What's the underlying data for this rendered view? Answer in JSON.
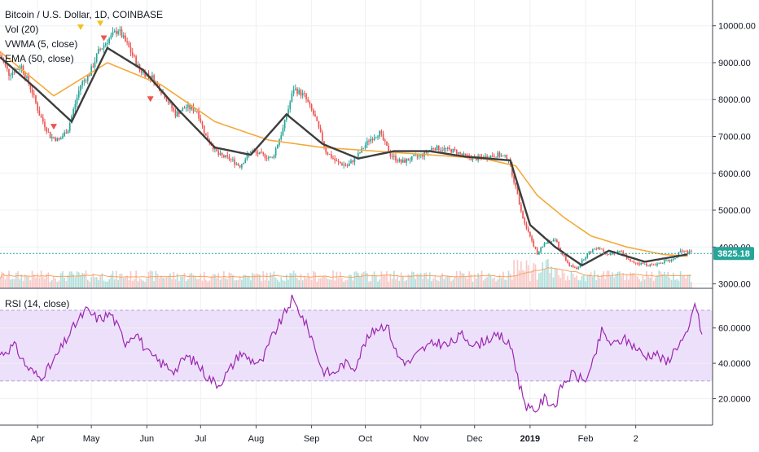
{
  "chart_data": [
    {
      "type": "candlestick",
      "legend": [
        "Bitcoin / U.S. Dollar, 1D, COINBASE",
        "Vol (20)",
        "VWMA (5, close)",
        "EMA (50, close)"
      ],
      "yticks": [
        "10000.00",
        "9000.00",
        "8000.00",
        "7000.00",
        "6000.00",
        "5000.00",
        "4000.00",
        "3000.00"
      ],
      "ylim": [
        2880,
        10700
      ],
      "last_price_label": "3825.18",
      "last_price": 3825.18,
      "colors": {
        "up": "#26a69a",
        "down": "#ef5350",
        "vwma": "#3d3d3d",
        "ema": "#f4a93b",
        "price_line": "#26a69a",
        "vol_ma": "#f4a460"
      },
      "xticks": [
        "Apr",
        "May",
        "Jun",
        "Jul",
        "Aug",
        "Sep",
        "Oct",
        "Nov",
        "Dec",
        "2019",
        "Feb",
        "2"
      ],
      "close_path": [
        [
          0,
          9200
        ],
        [
          5,
          8700
        ],
        [
          12,
          8900
        ],
        [
          18,
          8200
        ],
        [
          22,
          7600
        ],
        [
          28,
          7000
        ],
        [
          33,
          6900
        ],
        [
          38,
          7200
        ],
        [
          45,
          8400
        ],
        [
          50,
          8700
        ],
        [
          55,
          9300
        ],
        [
          60,
          9600
        ],
        [
          66,
          9900
        ],
        [
          72,
          9400
        ],
        [
          78,
          8800
        ],
        [
          85,
          8600
        ],
        [
          92,
          8100
        ],
        [
          98,
          7600
        ],
        [
          104,
          7800
        ],
        [
          110,
          7700
        ],
        [
          115,
          7000
        ],
        [
          122,
          6500
        ],
        [
          128,
          6400
        ],
        [
          134,
          6200
        ],
        [
          140,
          6600
        ],
        [
          146,
          6500
        ],
        [
          152,
          6400
        ],
        [
          158,
          7200
        ],
        [
          164,
          8300
        ],
        [
          170,
          8100
        ],
        [
          176,
          7500
        ],
        [
          182,
          6600
        ],
        [
          188,
          6300
        ],
        [
          194,
          6200
        ],
        [
          200,
          6500
        ],
        [
          206,
          6900
        ],
        [
          212,
          7100
        ],
        [
          218,
          6500
        ],
        [
          224,
          6300
        ],
        [
          230,
          6400
        ],
        [
          236,
          6500
        ],
        [
          242,
          6700
        ],
        [
          248,
          6650
        ],
        [
          254,
          6600
        ],
        [
          260,
          6450
        ],
        [
          266,
          6400
        ],
        [
          272,
          6450
        ],
        [
          278,
          6500
        ],
        [
          284,
          6400
        ],
        [
          288,
          5600
        ],
        [
          292,
          4800
        ],
        [
          296,
          4300
        ],
        [
          300,
          3800
        ],
        [
          304,
          4100
        ],
        [
          310,
          4200
        ],
        [
          314,
          3800
        ],
        [
          318,
          3500
        ],
        [
          322,
          3400
        ],
        [
          326,
          3700
        ],
        [
          330,
          3900
        ],
        [
          334,
          4000
        ],
        [
          340,
          3800
        ],
        [
          346,
          3900
        ],
        [
          352,
          3600
        ],
        [
          358,
          3550
        ],
        [
          364,
          3500
        ],
        [
          370,
          3600
        ],
        [
          376,
          3650
        ],
        [
          380,
          3900
        ],
        [
          384,
          3850
        ]
      ],
      "ema_path": [
        [
          0,
          9300
        ],
        [
          30,
          8100
        ],
        [
          60,
          9000
        ],
        [
          90,
          8400
        ],
        [
          120,
          7400
        ],
        [
          150,
          6900
        ],
        [
          180,
          6700
        ],
        [
          210,
          6600
        ],
        [
          240,
          6500
        ],
        [
          270,
          6400
        ],
        [
          288,
          6200
        ],
        [
          300,
          5400
        ],
        [
          315,
          4800
        ],
        [
          330,
          4300
        ],
        [
          350,
          4000
        ],
        [
          370,
          3800
        ],
        [
          384,
          3750
        ]
      ],
      "vwma_path": [
        [
          0,
          9150
        ],
        [
          20,
          8300
        ],
        [
          40,
          7400
        ],
        [
          60,
          9400
        ],
        [
          80,
          8800
        ],
        [
          100,
          7700
        ],
        [
          120,
          6700
        ],
        [
          140,
          6500
        ],
        [
          160,
          7600
        ],
        [
          180,
          6800
        ],
        [
          200,
          6400
        ],
        [
          220,
          6600
        ],
        [
          240,
          6600
        ],
        [
          260,
          6450
        ],
        [
          285,
          6350
        ],
        [
          296,
          4600
        ],
        [
          310,
          4000
        ],
        [
          325,
          3500
        ],
        [
          340,
          3900
        ],
        [
          360,
          3600
        ],
        [
          384,
          3800
        ]
      ]
    },
    {
      "type": "line",
      "legend": "RSI (14, close)",
      "yticks": [
        "60.0000",
        "40.0000",
        "20.0000"
      ],
      "ylim": [
        5,
        82
      ],
      "overbought": 70,
      "oversold": 30,
      "colors": {
        "line": "#9c27b0",
        "band": "#ede0fb",
        "band_border": "#b39ddb"
      },
      "rsi_path": [
        [
          0,
          45
        ],
        [
          8,
          50
        ],
        [
          15,
          38
        ],
        [
          22,
          32
        ],
        [
          28,
          38
        ],
        [
          35,
          50
        ],
        [
          42,
          62
        ],
        [
          48,
          70
        ],
        [
          55,
          65
        ],
        [
          62,
          68
        ],
        [
          70,
          52
        ],
        [
          76,
          58
        ],
        [
          82,
          46
        ],
        [
          90,
          40
        ],
        [
          98,
          36
        ],
        [
          104,
          44
        ],
        [
          110,
          40
        ],
        [
          116,
          32
        ],
        [
          122,
          28
        ],
        [
          128,
          36
        ],
        [
          134,
          46
        ],
        [
          140,
          42
        ],
        [
          146,
          40
        ],
        [
          152,
          55
        ],
        [
          158,
          66
        ],
        [
          163,
          76
        ],
        [
          168,
          68
        ],
        [
          174,
          55
        ],
        [
          180,
          36
        ],
        [
          186,
          34
        ],
        [
          192,
          40
        ],
        [
          198,
          38
        ],
        [
          204,
          52
        ],
        [
          210,
          60
        ],
        [
          216,
          62
        ],
        [
          222,
          44
        ],
        [
          228,
          40
        ],
        [
          236,
          48
        ],
        [
          244,
          52
        ],
        [
          250,
          50
        ],
        [
          258,
          56
        ],
        [
          266,
          50
        ],
        [
          272,
          54
        ],
        [
          280,
          55
        ],
        [
          286,
          48
        ],
        [
          290,
          28
        ],
        [
          294,
          16
        ],
        [
          298,
          12
        ],
        [
          304,
          20
        ],
        [
          310,
          16
        ],
        [
          314,
          28
        ],
        [
          320,
          34
        ],
        [
          326,
          30
        ],
        [
          330,
          36
        ],
        [
          336,
          58
        ],
        [
          342,
          50
        ],
        [
          348,
          54
        ],
        [
          354,
          50
        ],
        [
          360,
          44
        ],
        [
          366,
          46
        ],
        [
          372,
          40
        ],
        [
          378,
          50
        ],
        [
          384,
          56
        ],
        [
          388,
          75
        ],
        [
          392,
          56
        ]
      ]
    }
  ]
}
